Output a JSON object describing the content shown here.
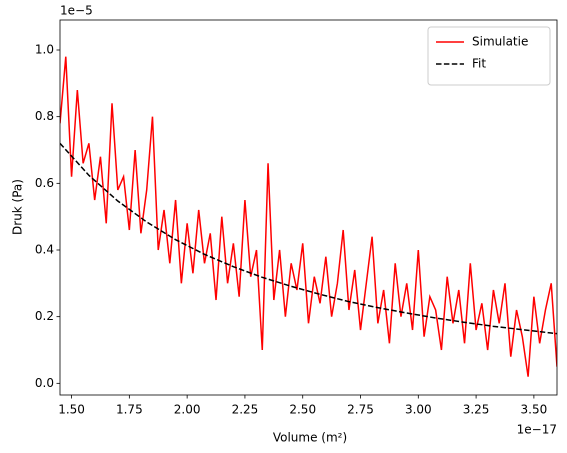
{
  "chart_data": {
    "type": "line",
    "y_label": "Druk (Pa)",
    "x_label": "Volume (m²)",
    "y_offset": "1e−5",
    "x_offset": "1e−17",
    "legend": "upper right",
    "xlim": [
      1.45,
      3.6
    ],
    "ylim": [
      -0.035,
      1.09
    ],
    "xticks": [
      {
        "value": 1.5,
        "label": "1.50"
      },
      {
        "value": 1.75,
        "label": "1.75"
      },
      {
        "value": 2.0,
        "label": "2.00"
      },
      {
        "value": 2.25,
        "label": "2.25"
      },
      {
        "value": 2.5,
        "label": "2.50"
      },
      {
        "value": 2.75,
        "label": "2.75"
      },
      {
        "value": 3.0,
        "label": "3.00"
      },
      {
        "value": 3.25,
        "label": "3.25"
      },
      {
        "value": 3.5,
        "label": "3.50"
      }
    ],
    "yticks": [
      {
        "value": 0,
        "label": "0.0"
      },
      {
        "value": 0.2,
        "label": "0.2"
      },
      {
        "value": 0.4,
        "label": "0.4"
      },
      {
        "value": 0.6,
        "label": "0.6"
      },
      {
        "value": 0.8,
        "label": "0.8"
      },
      {
        "value": 1.0,
        "label": "1.0"
      }
    ],
    "series": [
      {
        "name": "Simulatie",
        "color": "#ff0000",
        "dash": "solid",
        "x": [
          1.45,
          1.475,
          1.5,
          1.525,
          1.55,
          1.575,
          1.6,
          1.625,
          1.65,
          1.675,
          1.7,
          1.725,
          1.75,
          1.775,
          1.8,
          1.825,
          1.85,
          1.875,
          1.9,
          1.925,
          1.95,
          1.975,
          2.0,
          2.025,
          2.05,
          2.075,
          2.1,
          2.125,
          2.15,
          2.175,
          2.2,
          2.225,
          2.25,
          2.275,
          2.3,
          2.325,
          2.35,
          2.375,
          2.4,
          2.425,
          2.45,
          2.475,
          2.5,
          2.525,
          2.55,
          2.575,
          2.6,
          2.625,
          2.65,
          2.675,
          2.7,
          2.725,
          2.75,
          2.775,
          2.8,
          2.825,
          2.85,
          2.875,
          2.9,
          2.925,
          2.95,
          2.975,
          3.0,
          3.025,
          3.05,
          3.075,
          3.1,
          3.125,
          3.15,
          3.175,
          3.2,
          3.225,
          3.25,
          3.275,
          3.3,
          3.325,
          3.35,
          3.375,
          3.4,
          3.425,
          3.45,
          3.475,
          3.5,
          3.525,
          3.55,
          3.575,
          3.6
        ],
        "values": [
          0.78,
          0.98,
          0.62,
          0.88,
          0.66,
          0.72,
          0.55,
          0.68,
          0.48,
          0.84,
          0.58,
          0.62,
          0.46,
          0.7,
          0.45,
          0.58,
          0.8,
          0.4,
          0.52,
          0.36,
          0.55,
          0.3,
          0.48,
          0.33,
          0.52,
          0.36,
          0.45,
          0.25,
          0.5,
          0.3,
          0.42,
          0.26,
          0.55,
          0.32,
          0.4,
          0.1,
          0.66,
          0.25,
          0.4,
          0.2,
          0.36,
          0.28,
          0.42,
          0.18,
          0.32,
          0.24,
          0.38,
          0.2,
          0.3,
          0.46,
          0.22,
          0.34,
          0.16,
          0.3,
          0.44,
          0.18,
          0.28,
          0.12,
          0.36,
          0.2,
          0.3,
          0.16,
          0.4,
          0.14,
          0.26,
          0.22,
          0.1,
          0.32,
          0.18,
          0.28,
          0.12,
          0.36,
          0.16,
          0.24,
          0.1,
          0.28,
          0.18,
          0.3,
          0.08,
          0.22,
          0.14,
          0.02,
          0.26,
          0.12,
          0.22,
          0.3,
          0.05
        ]
      },
      {
        "name": "Fit",
        "color": "#000000",
        "dash": "dashed",
        "x": [
          1.45,
          1.575,
          1.7,
          1.825,
          1.95,
          2.075,
          2.2,
          2.325,
          2.45,
          2.575,
          2.7,
          2.825,
          2.95,
          3.075,
          3.2,
          3.325,
          3.45,
          3.575,
          3.6
        ],
        "values": [
          0.72,
          0.624,
          0.547,
          0.484,
          0.431,
          0.387,
          0.35,
          0.318,
          0.291,
          0.267,
          0.245,
          0.227,
          0.211,
          0.196,
          0.183,
          0.171,
          0.161,
          0.151,
          0.149
        ]
      }
    ]
  }
}
